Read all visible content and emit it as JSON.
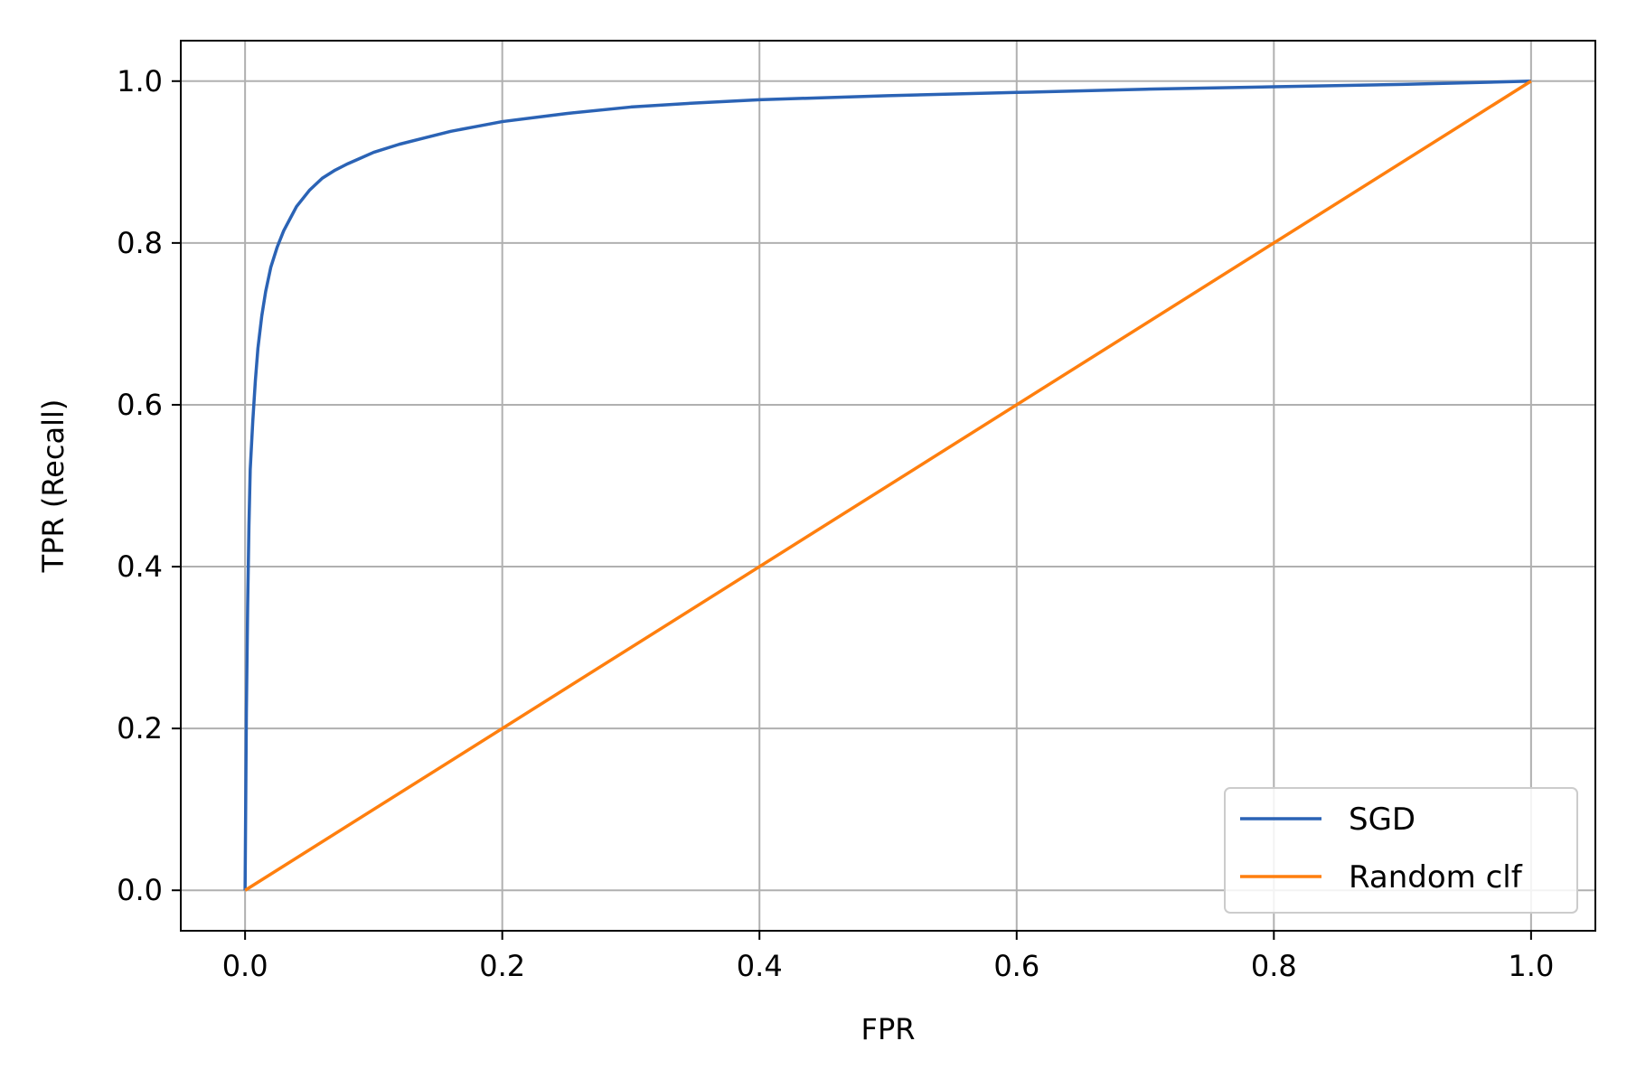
{
  "chart_data": {
    "type": "line",
    "title": "",
    "xlabel": "FPR",
    "ylabel": "TPR (Recall)",
    "xlim": [
      -0.05,
      1.05
    ],
    "ylim": [
      -0.05,
      1.05
    ],
    "x_ticks": [
      "0.0",
      "0.2",
      "0.4",
      "0.6",
      "0.8",
      "1.0"
    ],
    "y_ticks": [
      "0.0",
      "0.2",
      "0.4",
      "0.6",
      "0.8",
      "1.0"
    ],
    "grid": true,
    "legend_position": "lower-right",
    "series": [
      {
        "name": "SGD",
        "color": "#2b63b5",
        "x": [
          0,
          0.001,
          0.002,
          0.003,
          0.004,
          0.006,
          0.008,
          0.01,
          0.013,
          0.016,
          0.02,
          0.025,
          0.03,
          0.035,
          0.04,
          0.05,
          0.06,
          0.07,
          0.08,
          0.09,
          0.1,
          0.12,
          0.14,
          0.16,
          0.18,
          0.2,
          0.25,
          0.3,
          0.35,
          0.4,
          0.5,
          0.6,
          0.7,
          0.8,
          0.9,
          1.0
        ],
        "y": [
          0,
          0.22,
          0.35,
          0.45,
          0.52,
          0.58,
          0.63,
          0.67,
          0.71,
          0.74,
          0.77,
          0.795,
          0.815,
          0.83,
          0.845,
          0.865,
          0.88,
          0.89,
          0.898,
          0.905,
          0.912,
          0.922,
          0.93,
          0.938,
          0.944,
          0.95,
          0.96,
          0.968,
          0.973,
          0.977,
          0.982,
          0.986,
          0.99,
          0.993,
          0.996,
          1.0
        ]
      },
      {
        "name": "Random clf",
        "color": "#ff7f0e",
        "x": [
          0,
          1
        ],
        "y": [
          0,
          1
        ]
      }
    ]
  }
}
